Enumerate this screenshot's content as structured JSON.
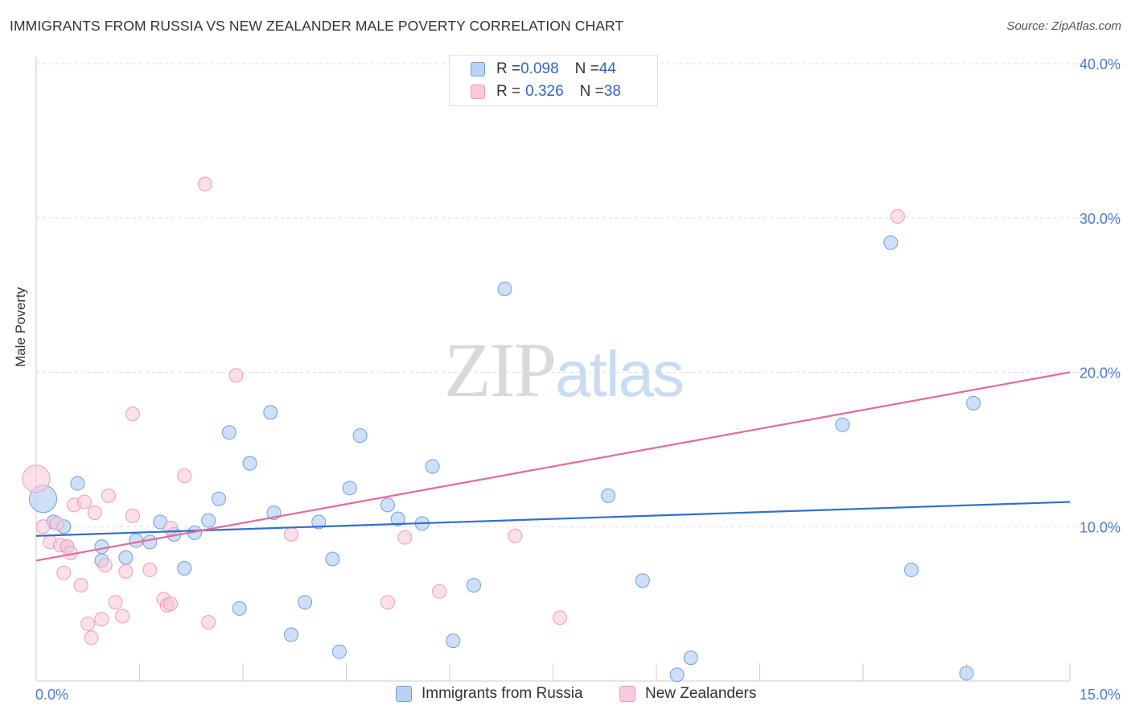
{
  "header": {
    "title": "IMMIGRANTS FROM RUSSIA VS NEW ZEALANDER MALE POVERTY CORRELATION CHART",
    "source": "Source: ZipAtlas.com"
  },
  "watermark": {
    "zip": "ZIP",
    "atlas": "atlas"
  },
  "legend": {
    "rows": [
      {
        "r_label": "R = ",
        "r_value": "0.098",
        "n_label": "N = ",
        "n_value": "44"
      },
      {
        "r_label": "R = ",
        "r_value": "0.326",
        "n_label": "N = ",
        "n_value": "38"
      }
    ]
  },
  "bottom_legend": [
    "Immigrants from Russia",
    "New Zealanders"
  ],
  "colors": {
    "blue_fill": "#b9d3f3",
    "blue_stroke": "#6f9fdc",
    "blue_line": "#2f6fd1",
    "pink_fill": "#f9cadb",
    "pink_stroke": "#ee9bb8",
    "pink_line": "#e8699a",
    "tick_text": "#4a7cc9",
    "grid": "#dddddd"
  },
  "chart_data": {
    "type": "scatter",
    "title": "IMMIGRANTS FROM RUSSIA VS NEW ZEALANDER MALE POVERTY CORRELATION CHART",
    "xlabel": "",
    "ylabel": "Male Poverty",
    "xlim": [
      0,
      15
    ],
    "ylim": [
      0,
      40
    ],
    "x_tick_labels": [
      "0.0%",
      "15.0%"
    ],
    "y_ticks": [
      10,
      20,
      30,
      40
    ],
    "y_tick_labels": [
      "10.0%",
      "20.0%",
      "30.0%",
      "40.0%"
    ],
    "grid": true,
    "series": [
      {
        "name": "Immigrants from Russia",
        "r": 0.098,
        "n": 44,
        "trend": {
          "x": [
            0,
            15
          ],
          "y": [
            9.4,
            11.6
          ]
        },
        "points": [
          [
            0.1,
            11.8,
            "large"
          ],
          [
            0.25,
            10.3
          ],
          [
            0.4,
            10.0
          ],
          [
            0.6,
            12.8
          ],
          [
            0.45,
            8.7
          ],
          [
            0.95,
            8.7
          ],
          [
            0.95,
            7.8
          ],
          [
            1.3,
            8.0
          ],
          [
            1.45,
            9.1
          ],
          [
            1.65,
            9.0
          ],
          [
            1.8,
            10.3
          ],
          [
            2.0,
            9.5
          ],
          [
            2.15,
            7.3
          ],
          [
            2.3,
            9.6
          ],
          [
            2.5,
            10.4
          ],
          [
            2.65,
            11.8
          ],
          [
            2.8,
            16.1
          ],
          [
            2.95,
            4.7
          ],
          [
            3.1,
            14.1
          ],
          [
            3.4,
            17.4
          ],
          [
            3.45,
            10.9
          ],
          [
            3.7,
            3.0
          ],
          [
            3.9,
            5.1
          ],
          [
            4.1,
            10.3
          ],
          [
            4.3,
            7.9
          ],
          [
            4.4,
            1.9
          ],
          [
            4.55,
            12.5
          ],
          [
            4.7,
            15.9
          ],
          [
            5.1,
            11.4
          ],
          [
            5.25,
            10.5
          ],
          [
            5.6,
            10.2
          ],
          [
            5.75,
            13.9
          ],
          [
            6.05,
            2.6
          ],
          [
            6.35,
            6.2
          ],
          [
            6.8,
            25.4
          ],
          [
            8.3,
            12.0
          ],
          [
            8.8,
            6.5
          ],
          [
            9.3,
            0.4
          ],
          [
            9.5,
            1.5
          ],
          [
            11.7,
            16.6
          ],
          [
            12.4,
            28.4
          ],
          [
            12.7,
            7.2
          ],
          [
            13.5,
            0.5
          ],
          [
            13.6,
            18.0
          ]
        ]
      },
      {
        "name": "New Zealanders",
        "r": 0.326,
        "n": 38,
        "trend": {
          "x": [
            0,
            15
          ],
          "y": [
            7.8,
            20.0
          ]
        },
        "points": [
          [
            0.0,
            13.1,
            "large"
          ],
          [
            0.1,
            10.0
          ],
          [
            0.2,
            9.0
          ],
          [
            0.3,
            10.2
          ],
          [
            0.35,
            8.8
          ],
          [
            0.4,
            7.0
          ],
          [
            0.45,
            8.7
          ],
          [
            0.5,
            8.3
          ],
          [
            0.55,
            11.4
          ],
          [
            0.65,
            6.2
          ],
          [
            0.7,
            11.6
          ],
          [
            0.75,
            3.7
          ],
          [
            0.8,
            2.8
          ],
          [
            0.85,
            10.9
          ],
          [
            0.95,
            4.0
          ],
          [
            1.0,
            7.5
          ],
          [
            1.05,
            12.0
          ],
          [
            1.15,
            5.1
          ],
          [
            1.25,
            4.2
          ],
          [
            1.3,
            7.1
          ],
          [
            1.4,
            10.7
          ],
          [
            1.4,
            17.3
          ],
          [
            1.65,
            7.2
          ],
          [
            1.85,
            5.3
          ],
          [
            1.9,
            4.9
          ],
          [
            1.95,
            9.9
          ],
          [
            1.95,
            5.0
          ],
          [
            2.15,
            13.3
          ],
          [
            2.45,
            32.2
          ],
          [
            2.5,
            3.8
          ],
          [
            2.9,
            19.8
          ],
          [
            3.7,
            9.5
          ],
          [
            5.1,
            5.1
          ],
          [
            5.35,
            9.3
          ],
          [
            5.85,
            5.8
          ],
          [
            6.95,
            9.4
          ],
          [
            7.6,
            4.1
          ],
          [
            12.5,
            30.1
          ]
        ]
      }
    ]
  }
}
